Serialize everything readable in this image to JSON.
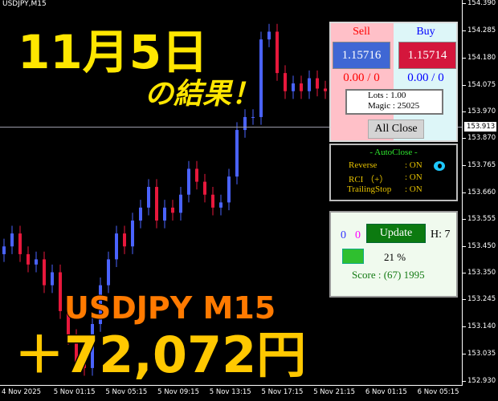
{
  "chart": {
    "symbol": "USDJPY,M15",
    "current_price": "153.913",
    "current_price_value": 153.913,
    "price_range": [
      152.93,
      154.39
    ],
    "price_labels": [
      "154.390",
      "154.285",
      "154.180",
      "154.075",
      "153.970",
      "153.870",
      "153.765",
      "153.660",
      "153.555",
      "153.450",
      "153.350",
      "153.245",
      "153.140",
      "153.035",
      "152.930"
    ],
    "time_labels": [
      "4 Nov 2025",
      "5 Nov 01:15",
      "5 Nov 05:15",
      "5 Nov 09:15",
      "5 Nov 13:15",
      "5 Nov 17:15",
      "5 Nov 21:15",
      "6 Nov 01:15",
      "6 Nov 05:15"
    ],
    "closes": [
      153.45,
      153.5,
      153.42,
      153.38,
      153.4,
      153.3,
      153.35,
      153.2,
      153.1,
      153.0,
      152.98,
      153.15,
      153.3,
      153.4,
      153.5,
      153.45,
      153.55,
      153.6,
      153.68,
      153.55,
      153.6,
      153.58,
      153.65,
      153.75,
      153.7,
      153.65,
      153.6,
      153.62,
      153.72,
      153.9,
      153.95,
      153.95,
      154.25,
      154.28,
      154.12,
      154.05,
      154.08,
      154.05,
      154.1,
      154.06,
      154.05
    ],
    "colors": {
      "bull": "#4a63ff",
      "bear": "#e8183c"
    }
  },
  "trade_panel": {
    "sell_label": "Sell",
    "buy_label": "Buy",
    "sell_price": "1.15716",
    "buy_price": "1.15714",
    "sell_pnl": "0.00 / 0",
    "buy_pnl": "0.00 / 0",
    "lots": "Lots   : 1.00",
    "magic": "Magic : 25025",
    "all_close": "All Close"
  },
  "autoclose": {
    "title": "- AutoClose -",
    "rows": [
      {
        "label": "Reverse",
        "value": ": ON"
      },
      {
        "label": "RCI （+）",
        "value": ": ON"
      },
      {
        "label": "TrailingStop",
        "value": ": ON"
      }
    ]
  },
  "status_panel": {
    "count_blue": "0",
    "count_magenta": "0",
    "update": "Update",
    "h": "H: 7",
    "percent": "21 %",
    "percent_value": 21,
    "score": "Score : (67) 1995"
  },
  "overlay": {
    "date": "11月5日",
    "result": "の結果！",
    "pair": "USDJPY M15",
    "profit": "＋72,072円"
  }
}
